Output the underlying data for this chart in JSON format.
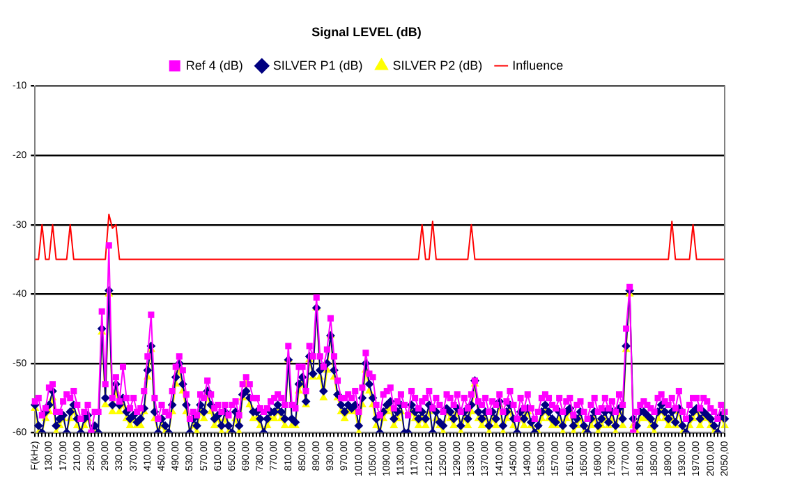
{
  "chart_data": {
    "type": "line",
    "title": "Signal LEVEL (dB)",
    "categories": [
      "F(kHz)",
      null,
      null,
      null,
      "130,00",
      null,
      null,
      null,
      "170,00",
      null,
      null,
      null,
      "210,00",
      null,
      null,
      null,
      "250,00",
      null,
      null,
      null,
      "290,00",
      null,
      null,
      null,
      "330,00",
      null,
      null,
      null,
      "370,00",
      null,
      null,
      null,
      "410,00",
      null,
      null,
      null,
      "450,00",
      null,
      null,
      null,
      "490,00",
      null,
      null,
      null,
      "530,00",
      null,
      null,
      null,
      "570,00",
      null,
      null,
      null,
      "610,00",
      null,
      null,
      null,
      "650,00",
      null,
      null,
      null,
      "690,00",
      null,
      null,
      null,
      "730,00",
      null,
      null,
      null,
      "770,00",
      null,
      null,
      null,
      "810,00",
      null,
      null,
      null,
      "850,00",
      null,
      null,
      null,
      "890,00",
      null,
      null,
      null,
      "930,00",
      null,
      null,
      null,
      "970,00",
      null,
      null,
      null,
      "1010,00",
      null,
      null,
      null,
      "1050,00",
      null,
      null,
      null,
      "1090,00",
      null,
      null,
      null,
      "1130,00",
      null,
      null,
      null,
      "1170,00",
      null,
      null,
      null,
      "1210,00",
      null,
      null,
      null,
      "1250,00",
      null,
      null,
      null,
      "1290,00",
      null,
      null,
      null,
      "1330,00",
      null,
      null,
      null,
      "1370,00",
      null,
      null,
      null,
      "1410,00",
      null,
      null,
      null,
      "1450,00",
      null,
      null,
      null,
      "1490,00",
      null,
      null,
      null,
      "1530,00",
      null,
      null,
      null,
      "1570,00",
      null,
      null,
      null,
      "1610,00",
      null,
      null,
      null,
      "1650,00",
      null,
      null,
      null,
      "1690,00",
      null,
      null,
      null,
      "1730,00",
      null,
      null,
      null,
      "1770,00",
      null,
      null,
      null,
      "1810,00",
      null,
      null,
      null,
      "1850,00",
      null,
      null,
      null,
      "1890,00",
      null,
      null,
      null,
      "1930,00",
      null,
      null,
      null,
      "1970,00",
      null,
      null,
      null,
      "2010,00",
      null,
      null,
      null,
      "2050,00"
    ],
    "series": [
      {
        "name": "Ref 4 (dB)",
        "color": "#ff00ff",
        "marker": "square",
        "values": [
          -55.5,
          -55,
          -57.5,
          -56.5,
          -53.5,
          -53,
          -57,
          -57,
          -55.5,
          -54.5,
          -55,
          -54,
          -56,
          -58,
          -57,
          -56,
          -60,
          -57,
          -57,
          -42.5,
          -53,
          -33,
          -55,
          -52,
          -55.5,
          -50.5,
          -55,
          -56.5,
          -55,
          -57,
          -56.5,
          -54,
          -49,
          -43,
          -55,
          -58,
          -56,
          -57,
          -57.5,
          -54,
          -50.5,
          -49,
          -51,
          -54.5,
          -58,
          -57,
          -57.5,
          -54.5,
          -55,
          -52.5,
          -54.5,
          -56.5,
          -56,
          -57,
          -56,
          -57.5,
          -56,
          -55.5,
          -57.5,
          -53,
          -52,
          -53,
          -55,
          -55,
          -56.5,
          -57,
          -56.5,
          -55.5,
          -55,
          -54.5,
          -55,
          -56,
          -47.5,
          -56,
          -56.5,
          -50.5,
          -50.5,
          -54,
          -47.5,
          -49,
          -40.5,
          -49,
          -50.5,
          -48,
          -43.5,
          -49,
          -52.5,
          -55,
          -55,
          -54.5,
          -55,
          -54,
          -57,
          -53.5,
          -48.5,
          -51.5,
          -52,
          -56,
          -57.5,
          -54.5,
          -54,
          -53.5,
          -56.5,
          -55.5,
          -54.5,
          -56,
          -57.5,
          -54,
          -55,
          -56.5,
          -55.5,
          -55,
          -54,
          -56.5,
          -55,
          -56,
          -57,
          -54.5,
          -55,
          -56,
          -54.5,
          -57,
          -55,
          -56.5,
          -54.5,
          -52.5,
          -55.5,
          -56,
          -55,
          -57,
          -55.5,
          -56,
          -54.5,
          -57,
          -55.5,
          -54,
          -56,
          -58,
          -55,
          -56.5,
          -54.5,
          -56.5,
          -58,
          -57,
          -55,
          -54.5,
          -55,
          -56,
          -56.5,
          -55,
          -57,
          -55.5,
          -55,
          -57.5,
          -56,
          -55.5,
          -57,
          -58,
          -56,
          -55,
          -57,
          -56.5,
          -55,
          -56.5,
          -55.5,
          -57,
          -54.5,
          -56,
          -45,
          -39,
          -60,
          -57,
          -56,
          -55.5,
          -56,
          -56.5,
          -57,
          -55,
          -54.5,
          -55.5,
          -56,
          -55,
          -56.5,
          -54,
          -57,
          -58,
          -56,
          -55,
          -55,
          -56.5,
          -55,
          -55.5,
          -56.5,
          -57,
          -58,
          -56,
          -57
        ]
      },
      {
        "name": "SILVER P1 (dB)",
        "color": "#000080",
        "marker": "diamond",
        "values": [
          -56,
          -59,
          -60,
          -57,
          -56,
          -54,
          -59,
          -58,
          -57.5,
          -60,
          -57,
          -56,
          -58,
          -60,
          -58,
          -57.5,
          -60,
          -59,
          -60,
          -45,
          -55,
          -39.5,
          -56,
          -53,
          -56,
          -55,
          -57,
          -58,
          -57.5,
          -58.5,
          -58,
          -56.5,
          -51,
          -47.5,
          -57,
          -60,
          -58,
          -59,
          -60,
          -56,
          -52,
          -50,
          -53,
          -56,
          -60,
          -58,
          -59,
          -56,
          -57,
          -54,
          -56,
          -58,
          -57.5,
          -59,
          -57,
          -59,
          -60,
          -57,
          -59,
          -54.5,
          -54,
          -55,
          -57,
          -57,
          -58,
          -60,
          -58,
          -57,
          -57,
          -56,
          -57,
          -58,
          -49.5,
          -58,
          -58.5,
          -53,
          -52,
          -55.5,
          -49,
          -51.5,
          -42,
          -51,
          -54,
          -50,
          -46,
          -51,
          -54.5,
          -56,
          -57,
          -56,
          -56.5,
          -56,
          -59,
          -55,
          -50,
          -53,
          -55,
          -58,
          -60,
          -57,
          -56,
          -55.5,
          -58,
          -57,
          -56,
          -60,
          -60,
          -56,
          -57,
          -58,
          -57,
          -58,
          -56,
          -60,
          -57,
          -58.5,
          -59,
          -56.5,
          -57,
          -58,
          -56.5,
          -59,
          -57,
          -58,
          -56,
          -52.5,
          -57,
          -58,
          -57,
          -59,
          -57,
          -58,
          -55.5,
          -59,
          -57,
          -56,
          -58,
          -60,
          -57,
          -58,
          -56.5,
          -58.5,
          -60,
          -59,
          -57,
          -56,
          -57,
          -58,
          -58.5,
          -57,
          -59,
          -57,
          -56.5,
          -59,
          -58,
          -57,
          -59,
          -60,
          -58,
          -57,
          -59,
          -58,
          -57,
          -58.5,
          -57,
          -59,
          -56.5,
          -58,
          -47.5,
          -39.5,
          -58,
          -59,
          -57,
          -57,
          -57.5,
          -58,
          -59,
          -57,
          -56,
          -57,
          -58,
          -57,
          -58.5,
          -56.5,
          -59,
          -60,
          -58,
          -57,
          -56.5,
          -58,
          -57,
          -57.5,
          -58,
          -59,
          -60,
          -57.5,
          -58
        ]
      },
      {
        "name": "SILVER P2 (dB)",
        "color": "#ffff00",
        "marker": "triangle",
        "values": [
          -56.5,
          -60,
          -60,
          -58,
          -57,
          -55,
          -60,
          -59,
          -58,
          -60,
          -58,
          -57,
          -59,
          -60,
          -59,
          -58,
          -60,
          -60,
          -60,
          -45.5,
          -56,
          -40,
          -57,
          -54,
          -57,
          -56,
          -58,
          -59,
          -58,
          -59,
          -59,
          -57,
          -52,
          -48,
          -58,
          -60,
          -59,
          -60,
          -60,
          -57,
          -53,
          -51,
          -54,
          -57,
          -60,
          -59,
          -60,
          -57,
          -58,
          -54.5,
          -57,
          -59,
          -58,
          -60,
          -58,
          -60,
          -60,
          -58,
          -60,
          -55,
          -53,
          -56,
          -58,
          -58,
          -59,
          -60,
          -59,
          -58,
          -58,
          -57,
          -58,
          -59,
          -49.5,
          -59,
          -59,
          -54,
          -53,
          -56,
          -49.5,
          -52,
          -42,
          -52,
          -55,
          -51,
          -46,
          -52,
          -55,
          -57,
          -58,
          -57,
          -57,
          -57,
          -60,
          -56,
          -51,
          -54,
          -56,
          -59,
          -60,
          -58,
          -57,
          -56.5,
          -59,
          -58,
          -57,
          -60,
          -60,
          -57,
          -58,
          -59,
          -58,
          -59,
          -57,
          -60,
          -58,
          -59,
          -60,
          -57,
          -58,
          -59,
          -57,
          -60,
          -58,
          -59,
          -57,
          -53,
          -58,
          -59,
          -58,
          -60,
          -58,
          -59,
          -56,
          -60,
          -58,
          -57,
          -59,
          -60,
          -58,
          -59,
          -57,
          -59,
          -60,
          -60,
          -58,
          -57,
          -58,
          -59,
          -59,
          -58,
          -60,
          -58,
          -57,
          -60,
          -59,
          -58,
          -60,
          -60,
          -59,
          -58,
          -60,
          -59,
          -58,
          -59,
          -58,
          -60,
          -57,
          -59,
          -48,
          -40,
          -59,
          -60,
          -58,
          -58,
          -58,
          -59,
          -60,
          -58,
          -57,
          -58,
          -59,
          -58,
          -59,
          -57,
          -60,
          -60,
          -59,
          -58,
          -57,
          -59,
          -58,
          -58,
          -59,
          -60,
          -60,
          -58,
          -59
        ]
      },
      {
        "name": "Influence",
        "color": "#ff0000",
        "marker": "none",
        "values": [
          -35,
          -35,
          -30,
          -35,
          -35,
          -30,
          -35,
          -35,
          -35,
          -35,
          -30,
          -35,
          -35,
          -35,
          -35,
          -35,
          -35,
          -35,
          -35,
          -35,
          -35,
          -28.5,
          -30.5,
          -30,
          -35,
          -35,
          -35,
          -35,
          -35,
          -35,
          -35,
          -35,
          -35,
          -35,
          -35,
          -35,
          -35,
          -35,
          -35,
          -35,
          -35,
          -35,
          -35,
          -35,
          -35,
          -35,
          -35,
          -35,
          -35,
          -35,
          -35,
          -35,
          -35,
          -35,
          -35,
          -35,
          -35,
          -35,
          -35,
          -35,
          -35,
          -35,
          -35,
          -35,
          -35,
          -35,
          -35,
          -35,
          -35,
          -35,
          -35,
          -35,
          -35,
          -35,
          -35,
          -35,
          -35,
          -35,
          -35,
          -35,
          -35,
          -35,
          -35,
          -35,
          -35,
          -35,
          -35,
          -35,
          -35,
          -35,
          -35,
          -35,
          -35,
          -35,
          -35,
          -35,
          -35,
          -35,
          -35,
          -35,
          -35,
          -35,
          -35,
          -35,
          -35,
          -35,
          -35,
          -35,
          -35,
          -35,
          -30,
          -35,
          -35,
          -29.5,
          -35,
          -35,
          -35,
          -35,
          -35,
          -35,
          -35,
          -35,
          -35,
          -35,
          -30,
          -35,
          -35,
          -35,
          -35,
          -35,
          -35,
          -35,
          -35,
          -35,
          -35,
          -35,
          -35,
          -35,
          -35,
          -35,
          -35,
          -35,
          -35,
          -35,
          -35,
          -35,
          -35,
          -35,
          -35,
          -35,
          -35,
          -35,
          -35,
          -35,
          -35,
          -35,
          -35,
          -35,
          -35,
          -35,
          -35,
          -35,
          -35,
          -35,
          -35,
          -35,
          -35,
          -35,
          -35,
          -35,
          -35,
          -35,
          -35,
          -35,
          -35,
          -35,
          -35,
          -35,
          -35,
          -35,
          -35,
          -29.5,
          -35,
          -35,
          -35,
          -35,
          -35,
          -30,
          -35,
          -35,
          -35,
          -35,
          -35,
          -35,
          -35,
          -35,
          -35
        ]
      }
    ],
    "ylim": [
      -60,
      -10
    ],
    "yticks": [
      -60,
      -50,
      -40,
      -30,
      -20,
      -10
    ],
    "grid": "y",
    "legend": "top",
    "line_style": "solid"
  }
}
